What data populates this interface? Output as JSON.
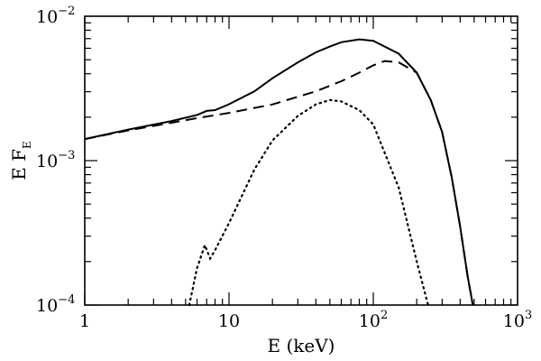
{
  "chart_data": {
    "type": "line",
    "xscale": "log",
    "yscale": "log",
    "xlim": [
      1,
      1000
    ],
    "ylim": [
      0.0001,
      0.01
    ],
    "xlabel": "E (keV)",
    "ylabel_main": "E F",
    "ylabel_sub": "E",
    "xticks": [
      {
        "value": 1,
        "base": "1",
        "exp": ""
      },
      {
        "value": 10,
        "base": "10",
        "exp": ""
      },
      {
        "value": 100,
        "base": "10",
        "exp": "2"
      },
      {
        "value": 1000,
        "base": "10",
        "exp": "3"
      }
    ],
    "yticks": [
      {
        "value": 0.0001,
        "base": "10",
        "exp": "−4"
      },
      {
        "value": 0.001,
        "base": "10",
        "exp": "−3"
      },
      {
        "value": 0.01,
        "base": "10",
        "exp": "−2"
      }
    ],
    "grid": false,
    "series": [
      {
        "style": "solid",
        "points": [
          [
            1,
            0.00141
          ],
          [
            2,
            0.00164
          ],
          [
            4,
            0.00188
          ],
          [
            6,
            0.00207
          ],
          [
            7,
            0.00221
          ],
          [
            8,
            0.00224
          ],
          [
            10,
            0.00246
          ],
          [
            15,
            0.00302
          ],
          [
            20,
            0.00372
          ],
          [
            30,
            0.00479
          ],
          [
            40,
            0.00562
          ],
          [
            50,
            0.00617
          ],
          [
            60,
            0.00661
          ],
          [
            80,
            0.00692
          ],
          [
            100,
            0.00676
          ],
          [
            150,
            0.0055
          ],
          [
            200,
            0.00407
          ],
          [
            250,
            0.00263
          ],
          [
            300,
            0.00158
          ],
          [
            350,
            0.00076
          ],
          [
            400,
            0.00035
          ],
          [
            450,
            0.00016
          ],
          [
            490,
            0.0001
          ]
        ]
      },
      {
        "style": "dashed",
        "points": [
          [
            1,
            0.00141
          ],
          [
            2,
            0.00162
          ],
          [
            4,
            0.00183
          ],
          [
            6,
            0.00197
          ],
          [
            10,
            0.00214
          ],
          [
            20,
            0.00245
          ],
          [
            40,
            0.00302
          ],
          [
            60,
            0.00355
          ],
          [
            80,
            0.00407
          ],
          [
            100,
            0.00457
          ],
          [
            120,
            0.0049
          ],
          [
            150,
            0.00479
          ],
          [
            200,
            0.00407
          ],
          [
            250,
            0.00263
          ],
          [
            300,
            0.00158
          ],
          [
            350,
            0.00076
          ],
          [
            400,
            0.00035
          ],
          [
            450,
            0.00016
          ],
          [
            490,
            0.0001
          ]
        ]
      },
      {
        "style": "dotted",
        "points": [
          [
            5.3,
            0.0001
          ],
          [
            6,
            0.00018
          ],
          [
            6.8,
            0.00026
          ],
          [
            7.4,
            0.00021
          ],
          [
            8,
            0.00024
          ],
          [
            10,
            0.00037
          ],
          [
            15,
            0.00087
          ],
          [
            20,
            0.00138
          ],
          [
            30,
            0.00204
          ],
          [
            40,
            0.00245
          ],
          [
            50,
            0.00263
          ],
          [
            60,
            0.00257
          ],
          [
            80,
            0.00224
          ],
          [
            100,
            0.00178
          ],
          [
            150,
            0.00065
          ],
          [
            200,
            0.0002
          ],
          [
            240,
            0.0001
          ]
        ]
      }
    ]
  }
}
